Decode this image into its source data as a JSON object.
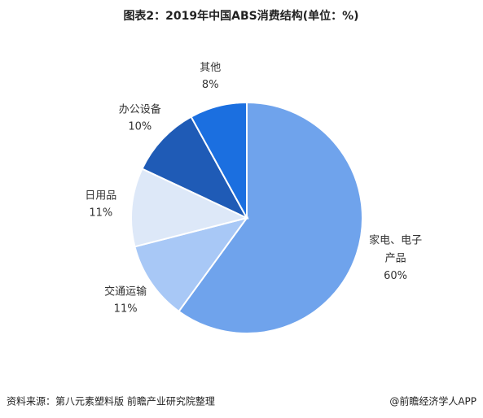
{
  "chart_data": {
    "type": "pie",
    "title": "图表2：2019年中国ABS消费结构(单位：%)",
    "categories": [
      "家电、电子产品",
      "交通运输",
      "日用品",
      "办公设备",
      "其他"
    ],
    "values": [
      60,
      11,
      11,
      10,
      8
    ],
    "value_labels": [
      "60%",
      "11%",
      "11%",
      "10%",
      "8%"
    ],
    "colors": [
      "#6fa3ec",
      "#a8c8f6",
      "#dde8f8",
      "#1f5bb6",
      "#1b6fe0"
    ],
    "source": "资料来源：第八元素塑料版 前瞻产业研究院整理",
    "footer": "@前瞻经济学人APP"
  }
}
